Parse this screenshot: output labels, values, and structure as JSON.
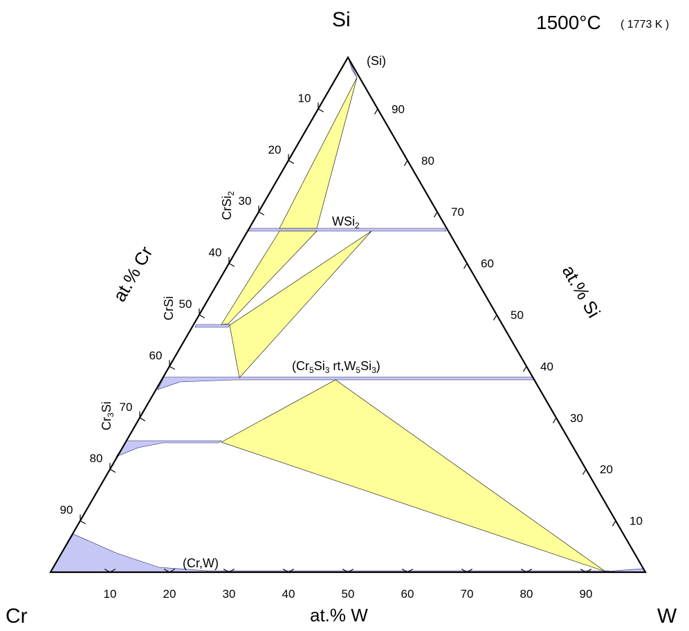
{
  "components": {
    "left": "Cr",
    "right": "W",
    "top": "Si"
  },
  "temperature": {
    "celsius": "1500°C",
    "kelvin": "( 1773 K )"
  },
  "axes": {
    "bottom": {
      "title": "at.% W"
    },
    "left": {
      "title": "at.% Cr"
    },
    "right": {
      "title": "at.% Si"
    }
  },
  "ticks": {
    "w": [
      "10",
      "20",
      "30",
      "40",
      "50",
      "60",
      "70",
      "80",
      "90"
    ],
    "cr": [
      "10",
      "20",
      "30",
      "40",
      "50",
      "60",
      "70",
      "80",
      "90"
    ],
    "si": [
      "10",
      "20",
      "30",
      "40",
      "50",
      "60",
      "70",
      "80",
      "90"
    ]
  },
  "phase_labels": {
    "si": "(Si)",
    "crsi2": {
      "base": "CrSi",
      "sub": "2"
    },
    "wsi2": {
      "base": "WSi",
      "sub": "2"
    },
    "crsi": "CrSi",
    "m5si3": [
      "(Cr",
      "5",
      "Si",
      "3",
      " rt,W",
      "5",
      "Si",
      "3",
      ")"
    ],
    "cr3si": {
      "base": "Cr",
      "sub": "3",
      "rest": "Si"
    },
    "crw": "(Cr,W)"
  },
  "colors": {
    "single_phase": "#c7c7f5",
    "three_phase": "#ffff99",
    "outline": "#000000",
    "boundary": "#1a1a66"
  },
  "chart_data": {
    "type": "ternary-phase-diagram",
    "units": "at.%",
    "corners": {
      "left": "Cr",
      "right": "W",
      "top": "Si"
    },
    "single_phase_regions": [
      {
        "name": "(Cr,W)",
        "extent": "solid solution along Cr–W binary, widest near Cr"
      },
      {
        "name": "Cr3Si",
        "si_at_pct": [
          22,
          25
        ]
      },
      {
        "name": "(Cr5Si3 rt,W5Si3)",
        "si_at_pct": [
          37.5,
          40
        ]
      },
      {
        "name": "CrSi",
        "si_at_pct": [
          50,
          50
        ]
      },
      {
        "name": "CrSi2",
        "si_at_pct": [
          66.7,
          66.7
        ]
      },
      {
        "name": "WSi2",
        "si_at_pct": [
          66.7,
          66.7
        ]
      },
      {
        "name": "(Si)",
        "si_at_pct": [
          100,
          100
        ]
      }
    ],
    "three_phase_triangles": [
      {
        "phases": [
          "Cr3Si",
          "(Cr5Si3 rt,W5Si3)",
          "(Cr,W)"
        ]
      },
      {
        "phases": [
          "CrSi",
          "(Cr5Si3 rt,W5Si3)",
          "WSi2"
        ]
      },
      {
        "phases": [
          "CrSi",
          "CrSi2",
          "WSi2"
        ]
      },
      {
        "phases": [
          "CrSi2",
          "WSi2",
          "(Si)"
        ]
      }
    ]
  }
}
